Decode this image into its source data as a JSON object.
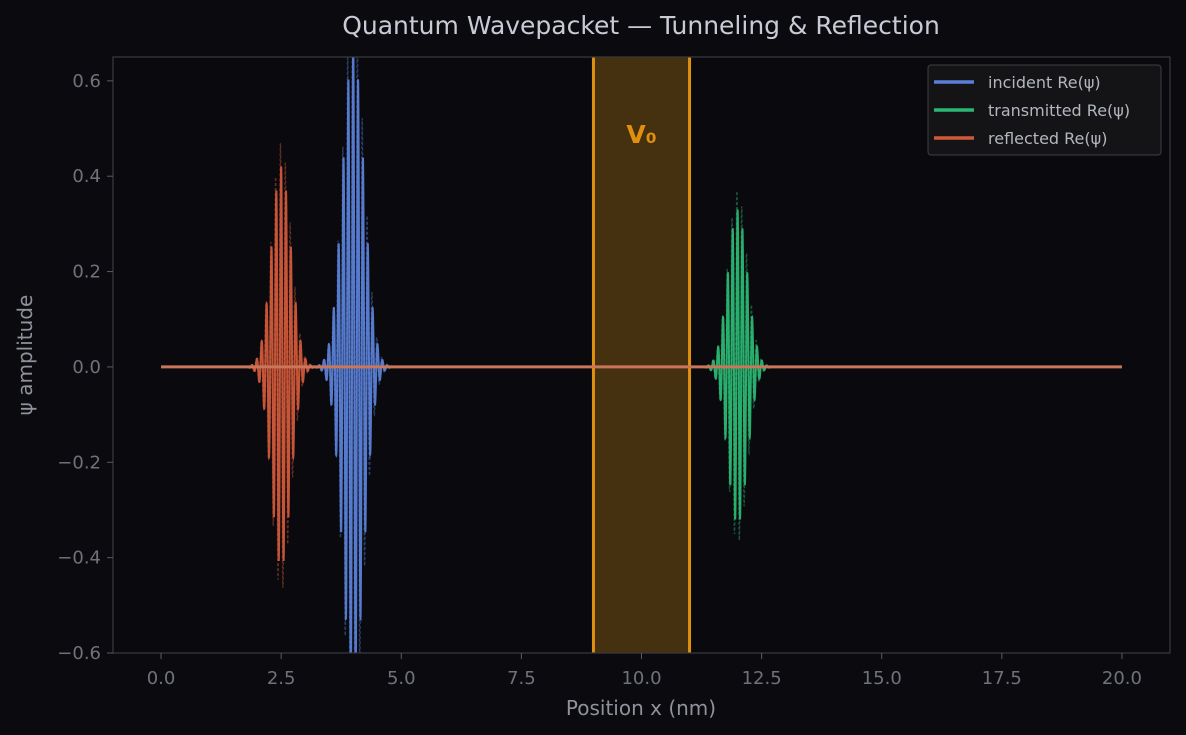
{
  "chart_data": {
    "type": "line",
    "title": "Quantum Wavepacket — Tunneling & Reflection",
    "xlabel": "Position x (nm)",
    "ylabel": "ψ amplitude",
    "xlim": [
      -1.0,
      21.0
    ],
    "ylim": [
      -0.6,
      0.65
    ],
    "x_ticks": [
      0.0,
      2.5,
      5.0,
      7.5,
      10.0,
      12.5,
      15.0,
      17.5,
      20.0
    ],
    "x_tick_labels": [
      "0.0",
      "2.5",
      "5.0",
      "7.5",
      "10.0",
      "12.5",
      "15.0",
      "17.5",
      "20.0"
    ],
    "y_ticks": [
      0.6,
      0.4,
      0.2,
      0.0,
      -0.2,
      -0.4,
      -0.6
    ],
    "y_tick_labels": [
      "0.6",
      "0.4",
      "0.2",
      "0.0",
      "−0.2",
      "−0.4",
      "−0.6"
    ],
    "grid": false,
    "legend_position": "top-right",
    "barrier": {
      "label": "V₀",
      "x_start": 9.0,
      "x_end": 11.0,
      "color": "#e0900f",
      "fill": "#45300f"
    },
    "series": [
      {
        "name": "incident Re(ψ)",
        "color": "#5a7fd6",
        "center": 4.0,
        "amplitude": 0.67,
        "sigma": 0.22,
        "k": 62
      },
      {
        "name": "transmitted Re(ψ)",
        "color": "#2bb673",
        "center": 12.0,
        "amplitude": 0.33,
        "sigma": 0.2,
        "k": 62
      },
      {
        "name": "reflected Re(ψ)",
        "color": "#d0593a",
        "center": 2.5,
        "amplitude": 0.42,
        "sigma": 0.2,
        "k": 62
      }
    ],
    "baseline": {
      "x_start": 0.0,
      "x_end": 20.0,
      "y": 0.0,
      "color": "#c9765a"
    }
  }
}
